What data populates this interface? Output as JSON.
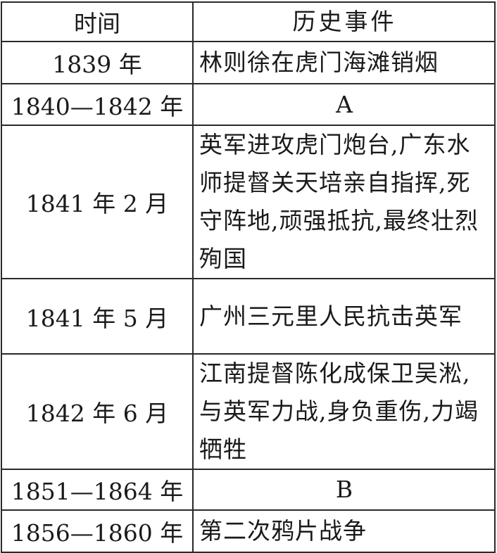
{
  "header": {
    "time": "时间",
    "event": "历史事件"
  },
  "rows": [
    {
      "time": "1839 年",
      "event": "林则徐在虎门海滩销烟"
    },
    {
      "time": "1840—1842 年",
      "event": "A"
    },
    {
      "time": "1841 年 2 月",
      "event": "英军进攻虎门炮台,广东水师提督关天培亲自指挥,死守阵地,顽强抵抗,最终壮烈殉国"
    },
    {
      "time": "1841 年 5 月",
      "event": "广州三元里人民抗击英军"
    },
    {
      "time": "1842 年 6 月",
      "event": "江南提督陈化成保卫吴淞,与英军力战,身负重伤,力竭牺牲"
    },
    {
      "time": "1851—1864 年",
      "event": "B"
    },
    {
      "time": "1856—1860 年",
      "event": "第二次鸦片战争"
    }
  ]
}
